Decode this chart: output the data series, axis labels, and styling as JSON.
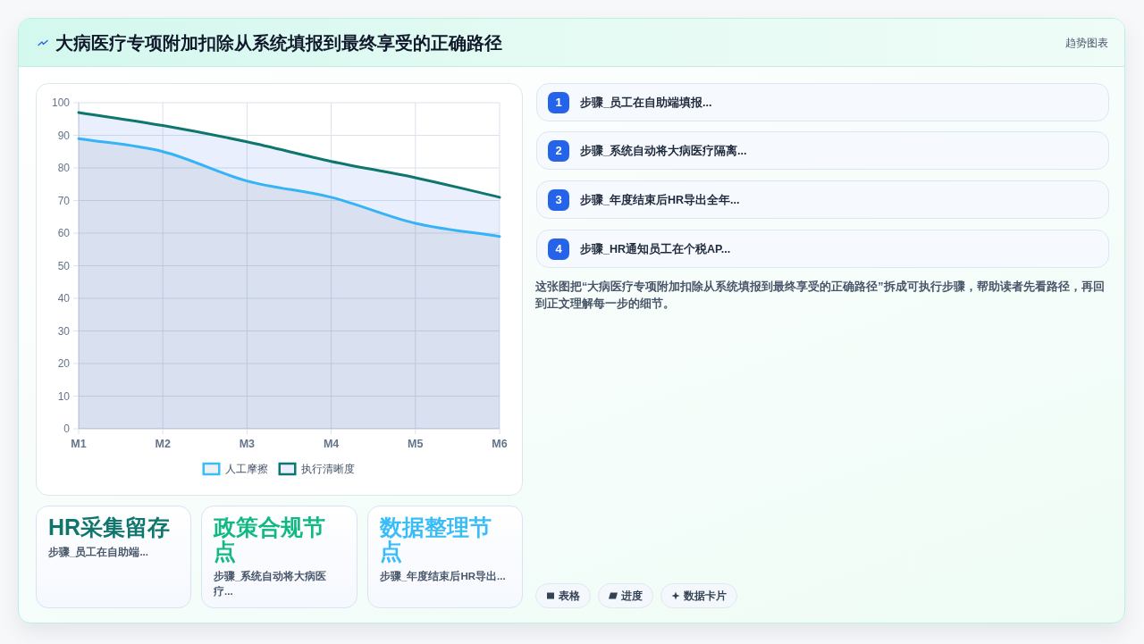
{
  "chart_data": [
    {
      "type": "other",
      "title": "大病医疗专项附加扣除从系统填报到最终享受的正确路径",
      "annotations": [
        "趋势图表"
      ]
    },
    {
      "type": "area",
      "categories": [
        "M1",
        "M2",
        "M3",
        "M4",
        "M5",
        "M6"
      ],
      "series": [
        {
          "name": "人工摩擦",
          "color": "#38bdf8",
          "values": [
            89,
            85,
            76,
            71,
            63,
            59
          ]
        },
        {
          "name": "执行清晰度",
          "color": "#0f766e",
          "values": [
            97,
            93,
            88,
            82,
            77,
            71
          ]
        }
      ],
      "ylim": [
        0,
        100
      ],
      "yticks": [
        0,
        10,
        20,
        30,
        40,
        50,
        60,
        70,
        80,
        90,
        100
      ],
      "grid": true,
      "legend": "bottom"
    },
    {
      "type": "other",
      "annotations": [
        "1",
        "步骤_员工在自助端填报..."
      ]
    },
    {
      "type": "other",
      "annotations": [
        "2",
        "步骤_系统自动将大病医疗隔离..."
      ]
    },
    {
      "type": "other",
      "annotations": [
        "3",
        "步骤_年度结束后HR导出全年..."
      ]
    },
    {
      "type": "other",
      "annotations": [
        "4",
        "步骤_HR通知员工在个税AP..."
      ]
    },
    {
      "type": "other",
      "annotations": [
        "这张图把“大病医疗专项附加扣除从系统填报到最终享受的正确路径”拆成可执行步骤，帮助读者先看路径，再回到正文理解每一步的细节。"
      ]
    },
    {
      "type": "other",
      "title": "HR采集留存",
      "color": "#0f766e",
      "annotations": [
        "步骤_员工在自助端..."
      ]
    },
    {
      "type": "other",
      "title": "政策合规节点",
      "color": "#10b981",
      "annotations": [
        "步骤_系统自动将大病医疗..."
      ]
    },
    {
      "type": "other",
      "title": "数据整理节点",
      "color": "#38bdf8",
      "annotations": [
        "步骤_年度结束后HR导出..."
      ]
    },
    {
      "type": "other",
      "annotations": [
        "表格",
        "进度",
        "数据卡片"
      ]
    }
  ]
}
